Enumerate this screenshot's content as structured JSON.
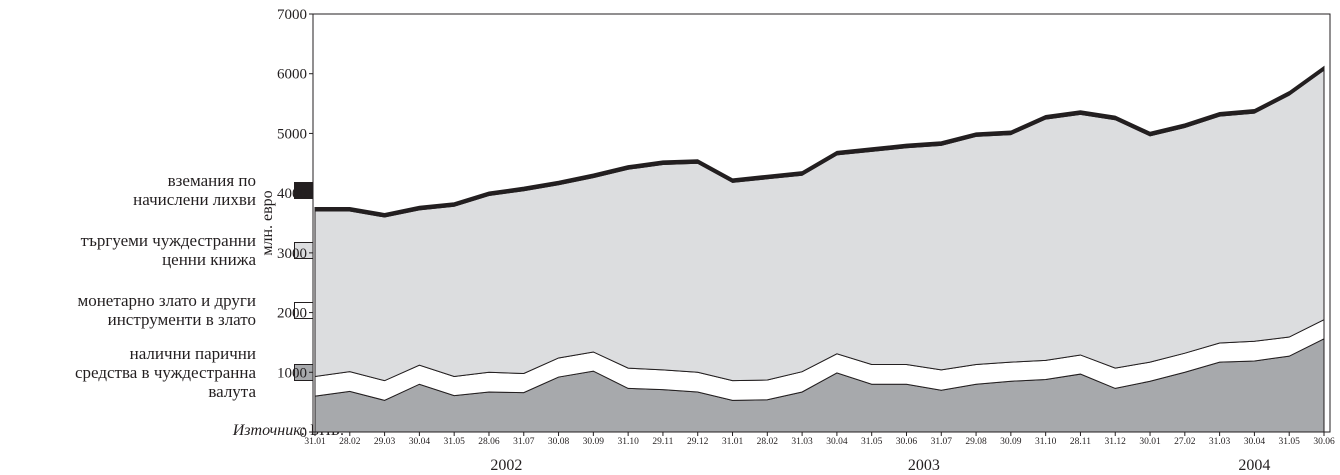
{
  "chart_data": {
    "type": "stacked_area",
    "y_label": "млн. евро",
    "categories": [
      "31.01",
      "28.02",
      "29.03",
      "30.04",
      "31.05",
      "28.06",
      "31.07",
      "30.08",
      "30.09",
      "31.10",
      "29.11",
      "29.12",
      "31.01",
      "28.02",
      "31.03",
      "30.04",
      "31.05",
      "30.06",
      "31.07",
      "29.08",
      "30.09",
      "31.10",
      "28.11",
      "31.12",
      "30.01",
      "27.02",
      "31.03",
      "30.04",
      "31.05",
      "30.06"
    ],
    "years": [
      "2002",
      "2003",
      "2004"
    ],
    "ylim": [
      0,
      7000
    ],
    "yticks": [
      0,
      1000,
      2000,
      3000,
      4000,
      5000,
      6000,
      7000
    ],
    "series": [
      {
        "name": "налични парични\nсредства в чуждестранна\nвалута",
        "color": "#a7a9ac",
        "values": [
          600,
          680,
          530,
          800,
          610,
          670,
          660,
          920,
          1020,
          730,
          710,
          670,
          530,
          540,
          670,
          990,
          800,
          800,
          700,
          800,
          850,
          880,
          970,
          730,
          850,
          1000,
          1170,
          1190,
          1270,
          1560
        ]
      },
      {
        "name": "монетарно злато и други\nинструменти  в злато",
        "color": "#ffffff",
        "values": [
          330,
          330,
          330,
          320,
          320,
          330,
          320,
          320,
          320,
          340,
          330,
          330,
          330,
          330,
          340,
          320,
          330,
          330,
          340,
          330,
          320,
          320,
          320,
          340,
          320,
          320,
          320,
          330,
          320,
          320
        ]
      },
      {
        "name": "търгуеми чуждестранни\nценни книжа",
        "color": "#dcdddf",
        "values": [
          2770,
          2690,
          2740,
          2600,
          2850,
          2960,
          3060,
          2900,
          2920,
          3330,
          3440,
          3500,
          3320,
          3370,
          3290,
          3330,
          3570,
          3630,
          3760,
          3820,
          3810,
          4040,
          4030,
          4160,
          3790,
          3780,
          3800,
          3820,
          4050,
          4180
        ]
      },
      {
        "name": "вземания по\nначислени лихви",
        "color": "#231f20",
        "values": [
          60,
          60,
          60,
          60,
          60,
          60,
          60,
          60,
          60,
          60,
          60,
          60,
          60,
          60,
          60,
          60,
          60,
          60,
          60,
          60,
          60,
          60,
          60,
          60,
          60,
          60,
          60,
          60,
          60,
          60
        ]
      }
    ]
  },
  "source_label": "Източник:",
  "source": "БНБ."
}
